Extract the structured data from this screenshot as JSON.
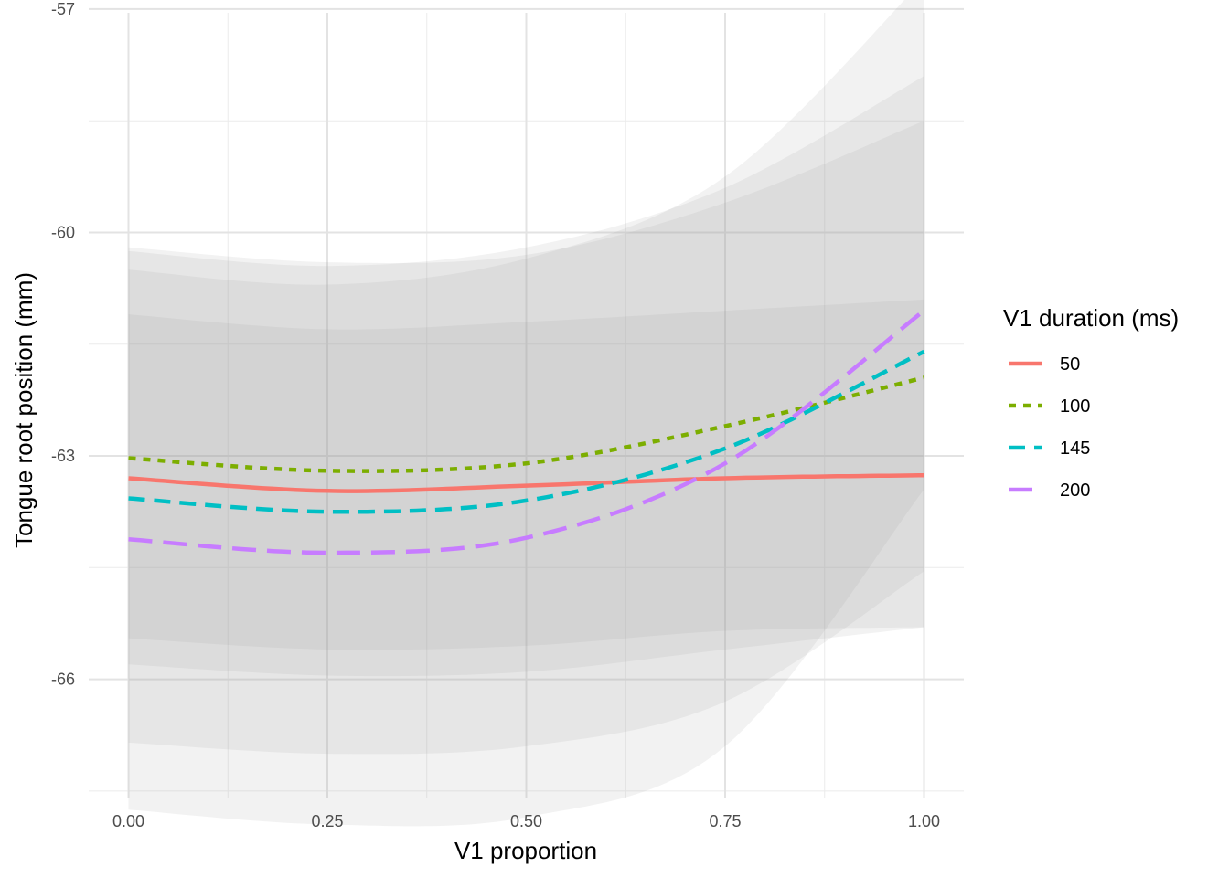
{
  "chart_data": {
    "type": "line",
    "xlabel": "V1 proportion",
    "ylabel": "Tongue root position (mm)",
    "xlim": [
      -0.05,
      1.05
    ],
    "ylim": [
      -67.6,
      -57.05
    ],
    "x_ticks": [
      "0.00",
      "0.25",
      "0.50",
      "0.75",
      "1.00"
    ],
    "y_ticks": [
      "-57",
      "-60",
      "-63",
      "-66"
    ],
    "grid": true,
    "legend": {
      "title": "V1 duration (ms)",
      "position": "right"
    },
    "x": [
      0.0,
      0.25,
      0.5,
      0.75,
      1.0
    ],
    "series": [
      {
        "name": "50",
        "color": "#F8766D",
        "dash": "solid",
        "values": [
          -63.3,
          -63.47,
          -63.4,
          -63.3,
          -63.26
        ],
        "band_lower": [
          -65.45,
          -65.6,
          -65.55,
          -65.35,
          -65.3
        ],
        "band_upper": [
          -61.1,
          -61.3,
          -61.2,
          -61.05,
          -60.9
        ]
      },
      {
        "name": "100",
        "color": "#7CAE00",
        "dash": "dotted",
        "values": [
          -63.03,
          -63.2,
          -63.1,
          -62.6,
          -61.95
        ],
        "band_lower": [
          -65.8,
          -65.95,
          -65.9,
          -65.6,
          -65.3
        ],
        "band_upper": [
          -60.2,
          -60.4,
          -60.3,
          -59.6,
          -58.5
        ]
      },
      {
        "name": "145",
        "color": "#00BFC4",
        "dash": "dashed",
        "values": [
          -63.57,
          -63.75,
          -63.6,
          -62.9,
          -61.6
        ],
        "band_lower": [
          -66.85,
          -67.0,
          -66.9,
          -66.3,
          -64.55
        ],
        "band_upper": [
          -60.25,
          -60.45,
          -60.2,
          -59.4,
          -57.9
        ]
      },
      {
        "name": "200",
        "color": "#C77CFF",
        "dash": "longdash",
        "values": [
          -64.12,
          -64.3,
          -64.1,
          -63.1,
          -61.05
        ],
        "band_lower": [
          -67.75,
          -67.95,
          -67.85,
          -66.9,
          -63.45
        ],
        "band_upper": [
          -60.5,
          -60.7,
          -60.35,
          -59.25,
          -56.6
        ]
      }
    ]
  }
}
